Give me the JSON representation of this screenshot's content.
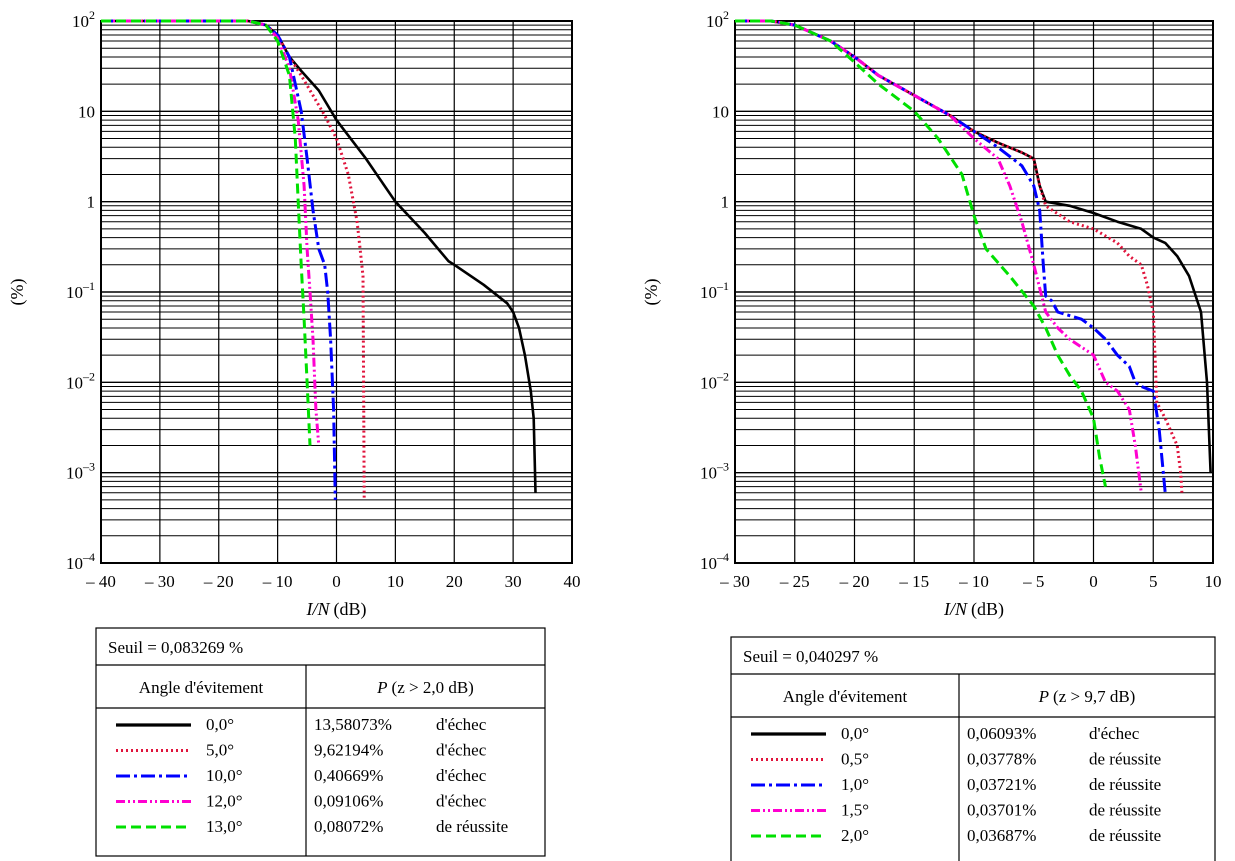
{
  "chart_data": [
    {
      "type": "line",
      "xlabel_italic": "I/N",
      "xlabel_unit": "(dB)",
      "ylabel": "(%)",
      "x_scale": "linear",
      "y_scale": "log",
      "xlim": [
        -40,
        40
      ],
      "ylim": [
        0.0001,
        100
      ],
      "grid": true,
      "x_ticks": [
        -40,
        -30,
        -20,
        -10,
        0,
        10,
        20,
        30,
        40
      ],
      "x_tick_labels": [
        "– 40",
        "– 30",
        "– 20",
        "– 10",
        "0",
        "10",
        "20",
        "30",
        "40"
      ],
      "y_tick_labels": [
        {
          "base": "10",
          "exp": "2"
        },
        {
          "base": "10",
          "exp": ""
        },
        {
          "base": "1",
          "exp": ""
        },
        {
          "base": "10",
          "exp": "–1"
        },
        {
          "base": "10",
          "exp": "–2"
        },
        {
          "base": "10",
          "exp": "–3"
        },
        {
          "base": "10",
          "exp": "–4"
        }
      ],
      "legend": {
        "threshold": "Seuil = 0,083269 %",
        "col1_header": "Angle d'évitement",
        "col2_header_prefix": "P",
        "col2_header_rest": "(z > 2,0 dB)",
        "rows": [
          {
            "angle": "0,0°",
            "value": "13,58073%",
            "result": "d'échec"
          },
          {
            "angle": "5,0°",
            "value": "9,62194%",
            "result": "d'échec"
          },
          {
            "angle": "10,0°",
            "value": "0,40669%",
            "result": "d'échec"
          },
          {
            "angle": "12,0°",
            "value": "0,09106%",
            "result": "d'échec"
          },
          {
            "angle": "13,0°",
            "value": "0,08072%",
            "result": "de réussite"
          }
        ]
      },
      "series": [
        {
          "name": "0,0°",
          "color": "#000000",
          "dash": "solid",
          "x": [
            -40,
            -15,
            -12,
            -10,
            -8,
            -6,
            -3,
            0,
            5,
            10,
            15,
            19,
            20,
            25,
            29,
            30,
            31,
            32,
            33,
            33.5,
            33.8
          ],
          "y": [
            100,
            100,
            90,
            70,
            40,
            28,
            17,
            8,
            3,
            1,
            0.45,
            0.22,
            0.2,
            0.12,
            0.075,
            0.06,
            0.04,
            0.02,
            0.008,
            0.004,
            0.0006
          ]
        },
        {
          "name": "5,0°",
          "color": "#e0143c",
          "dash": "dotted",
          "x": [
            -40,
            -15,
            -12,
            -10,
            -8,
            -6,
            -4,
            -2,
            0,
            2,
            3.5,
            4,
            4.5,
            4.6,
            4.7
          ],
          "y": [
            100,
            100,
            90,
            70,
            40,
            25,
            15,
            9,
            5,
            2,
            0.6,
            0.3,
            0.15,
            0.01,
            0.0005
          ]
        },
        {
          "name": "10,0°",
          "color": "#0000ff",
          "dash": "dashdot",
          "x": [
            -40,
            -15,
            -12,
            -10,
            -8,
            -6,
            -5,
            -4,
            -3,
            -2,
            -1.5,
            -1,
            -0.5,
            -0.2
          ],
          "y": [
            100,
            100,
            90,
            70,
            40,
            10,
            3,
            0.8,
            0.3,
            0.2,
            0.1,
            0.03,
            0.005,
            0.0005
          ]
        },
        {
          "name": "12,0°",
          "color": "#ff00d0",
          "dash": "dashdotdot",
          "x": [
            -40,
            -15,
            -12,
            -10,
            -8,
            -6.5,
            -5.5,
            -5,
            -4.5,
            -4,
            -3.5,
            -3
          ],
          "y": [
            100,
            100,
            90,
            65,
            30,
            8,
            1.5,
            0.3,
            0.1,
            0.03,
            0.005,
            0.002
          ]
        },
        {
          "name": "13,0°",
          "color": "#00e000",
          "dash": "dashed",
          "x": [
            -40,
            -15,
            -12,
            -10,
            -8,
            -7,
            -6.5,
            -6,
            -5.5,
            -5,
            -4.5
          ],
          "y": [
            100,
            100,
            90,
            60,
            25,
            5,
            1,
            0.2,
            0.05,
            0.01,
            0.002
          ]
        }
      ]
    },
    {
      "type": "line",
      "xlabel_italic": "I/N",
      "xlabel_unit": "(dB)",
      "ylabel": "(%)",
      "x_scale": "linear",
      "y_scale": "log",
      "xlim": [
        -30,
        10
      ],
      "ylim": [
        0.0001,
        100
      ],
      "grid": true,
      "x_ticks": [
        -30,
        -25,
        -20,
        -15,
        -10,
        -5,
        0,
        5,
        10
      ],
      "x_tick_labels": [
        "– 30",
        "– 25",
        "– 20",
        "– 15",
        "– 10",
        "– 5",
        "0",
        "5",
        "10"
      ],
      "y_tick_labels": [
        {
          "base": "10",
          "exp": "2"
        },
        {
          "base": "10",
          "exp": ""
        },
        {
          "base": "1",
          "exp": ""
        },
        {
          "base": "10",
          "exp": "–1"
        },
        {
          "base": "10",
          "exp": "–2"
        },
        {
          "base": "10",
          "exp": "–3"
        },
        {
          "base": "10",
          "exp": "–4"
        }
      ],
      "legend": {
        "threshold": "Seuil = 0,040297 %",
        "col1_header": "Angle d'évitement",
        "col2_header_prefix": "P",
        "col2_header_rest": "(z > 9,7 dB)",
        "rows": [
          {
            "angle": "0,0°",
            "value": "0,06093%",
            "result": "d'échec"
          },
          {
            "angle": "0,5°",
            "value": "0,03778%",
            "result": "de réussite"
          },
          {
            "angle": "1,0°",
            "value": "0,03721%",
            "result": "de réussite"
          },
          {
            "angle": "1,5°",
            "value": "0,03701%",
            "result": "de réussite"
          },
          {
            "angle": "2,0°",
            "value": "0,03687%",
            "result": "de réussite"
          }
        ]
      },
      "series": [
        {
          "name": "0,0°",
          "color": "#000000",
          "dash": "solid",
          "x": [
            -30,
            -27,
            -25,
            -22,
            -20,
            -18,
            -15,
            -12,
            -10,
            -8,
            -6,
            -5,
            -4.5,
            -4,
            -2,
            0,
            2,
            4,
            5,
            6,
            7,
            8,
            9,
            9.5,
            9.8
          ],
          "y": [
            100,
            100,
            90,
            60,
            40,
            25,
            15,
            9,
            6,
            4.5,
            3.5,
            3,
            1.5,
            1.0,
            0.9,
            0.75,
            0.6,
            0.5,
            0.4,
            0.35,
            0.25,
            0.15,
            0.06,
            0.01,
            0.001
          ]
        },
        {
          "name": "0,5°",
          "color": "#e0143c",
          "dash": "dotted",
          "x": [
            -30,
            -27,
            -25,
            -22,
            -20,
            -18,
            -15,
            -12,
            -10,
            -8,
            -6,
            -5,
            -4.5,
            -4,
            -2,
            0,
            2,
            3,
            4,
            4.5,
            5,
            5.3,
            6,
            7,
            7.3,
            7.4
          ],
          "y": [
            100,
            100,
            90,
            60,
            40,
            25,
            15,
            9,
            6,
            4.5,
            3.5,
            3,
            1.5,
            0.9,
            0.6,
            0.5,
            0.35,
            0.25,
            0.2,
            0.12,
            0.06,
            0.006,
            0.004,
            0.002,
            0.001,
            0.0006
          ]
        },
        {
          "name": "1,0°",
          "color": "#0000ff",
          "dash": "dashdot",
          "x": [
            -30,
            -27,
            -25,
            -22,
            -20,
            -18,
            -15,
            -12,
            -10,
            -8,
            -6,
            -5,
            -4.5,
            -4.2,
            -4,
            -3.5,
            -3,
            -1,
            0,
            1,
            2,
            3,
            3.5,
            4,
            5,
            5.5,
            6
          ],
          "y": [
            100,
            100,
            90,
            60,
            40,
            25,
            15,
            9,
            6,
            4,
            2.5,
            1.5,
            0.8,
            0.2,
            0.09,
            0.08,
            0.06,
            0.05,
            0.04,
            0.03,
            0.02,
            0.015,
            0.01,
            0.009,
            0.008,
            0.003,
            0.0006
          ]
        },
        {
          "name": "1,5°",
          "color": "#ff00d0",
          "dash": "dashdotdot",
          "x": [
            -30,
            -27,
            -25,
            -22,
            -20,
            -18,
            -15,
            -12,
            -10,
            -8,
            -7,
            -6,
            -5,
            -4,
            -3,
            -2,
            0,
            1,
            2,
            3,
            3.5,
            4
          ],
          "y": [
            100,
            100,
            90,
            60,
            40,
            25,
            15,
            9,
            5,
            3,
            1.5,
            0.6,
            0.2,
            0.06,
            0.04,
            0.03,
            0.02,
            0.01,
            0.008,
            0.005,
            0.002,
            0.0006
          ]
        },
        {
          "name": "2,0°",
          "color": "#00e000",
          "dash": "dashed",
          "x": [
            -30,
            -27,
            -25,
            -22,
            -20,
            -18,
            -15,
            -13,
            -11,
            -10,
            -9,
            -7,
            -5,
            -4,
            -3,
            -2,
            -1,
            0,
            0.5,
            1
          ],
          "y": [
            100,
            100,
            90,
            60,
            35,
            20,
            10,
            5,
            2,
            0.7,
            0.3,
            0.15,
            0.07,
            0.04,
            0.02,
            0.012,
            0.008,
            0.004,
            0.0015,
            0.0007
          ]
        }
      ]
    }
  ]
}
